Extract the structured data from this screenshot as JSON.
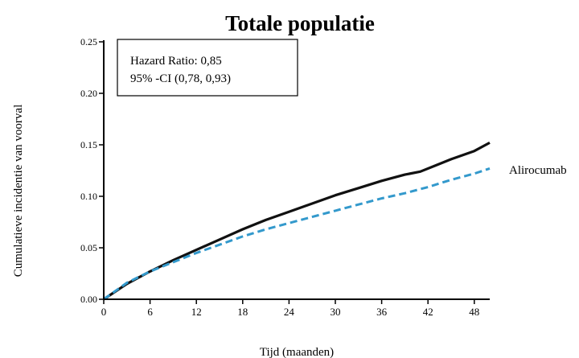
{
  "chart_data": {
    "type": "line",
    "title": "Totale populatie",
    "xlabel": "Tijd (maanden)",
    "ylabel": "Cumulatieve incidentie van voorval",
    "xlim": [
      0,
      50
    ],
    "ylim": [
      0,
      0.25
    ],
    "x_ticks": [
      0,
      6,
      12,
      18,
      24,
      30,
      36,
      42,
      48
    ],
    "x_tick_labels": [
      "0",
      "6",
      "12",
      "18",
      "24",
      "30",
      "36",
      "42",
      "48"
    ],
    "y_ticks": [
      0,
      0.05,
      0.1,
      0.15,
      0.2,
      0.25
    ],
    "y_tick_labels": [
      "0.00",
      "0.05",
      "0.10",
      "0.15",
      "0.20",
      "0.25"
    ],
    "grid": false,
    "annotation": {
      "lines": [
        "Hazard Ratio: 0,85",
        "95% -CI (0,78, 0,93)"
      ]
    },
    "series": [
      {
        "color": "#111111",
        "style": "solid",
        "x": [
          0,
          3,
          6,
          9,
          12,
          15,
          18,
          21,
          24,
          27,
          30,
          33,
          36,
          39,
          41,
          43,
          45,
          48,
          50
        ],
        "y": [
          0,
          0.015,
          0.027,
          0.038,
          0.048,
          0.058,
          0.068,
          0.077,
          0.085,
          0.093,
          0.101,
          0.108,
          0.115,
          0.121,
          0.124,
          0.13,
          0.136,
          0.144,
          0.152
        ]
      },
      {
        "name": "Alirocumab",
        "color": "#3399cc",
        "style": "dashed",
        "x": [
          0,
          3,
          6,
          9,
          12,
          15,
          18,
          21,
          24,
          27,
          30,
          33,
          36,
          39,
          42,
          45,
          48,
          50
        ],
        "y": [
          0,
          0.016,
          0.027,
          0.036,
          0.045,
          0.053,
          0.061,
          0.068,
          0.074,
          0.08,
          0.086,
          0.092,
          0.098,
          0.103,
          0.109,
          0.116,
          0.122,
          0.127
        ]
      }
    ]
  }
}
